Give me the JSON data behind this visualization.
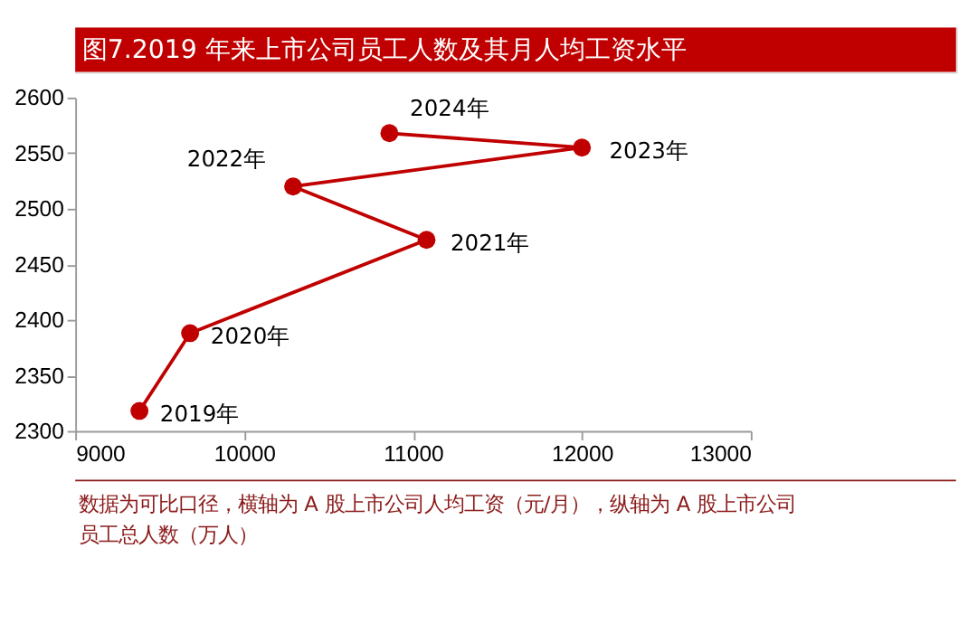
{
  "chart_data": {
    "type": "line",
    "title": "图7.2019 年来上市公司员工人数及其月人均工资水平",
    "series": [
      {
        "color": "#c00000",
        "x": [
          9380,
          9680,
          11080,
          10290,
          12000,
          10860
        ],
        "values": [
          2318,
          2388,
          2472,
          2520,
          2555,
          2568
        ]
      }
    ],
    "marker": "circle",
    "line_style": "solid",
    "grid": false,
    "xlim": [
      9000,
      13000
    ],
    "xticks": [
      9000,
      10000,
      11000,
      12000,
      13000
    ],
    "ylim": [
      2300,
      2600
    ],
    "yticks": [
      2300,
      2350,
      2400,
      2450,
      2500,
      2550,
      2600
    ],
    "annotations": [
      {
        "text": "2019年",
        "x": 9380,
        "y": 2318
      },
      {
        "text": "2020年",
        "x": 9680,
        "y": 2388
      },
      {
        "text": "2021年",
        "x": 11080,
        "y": 2472
      },
      {
        "text": "2022年",
        "x": 10290,
        "y": 2520
      },
      {
        "text": "2023年",
        "x": 12000,
        "y": 2555
      },
      {
        "text": "2024年",
        "x": 10860,
        "y": 2568
      },
      "数据为可比口径，横轴为 A 股上市公司人均工资（元/月），纵轴为 A 股上市公司员工总人数（万人）"
    ]
  }
}
